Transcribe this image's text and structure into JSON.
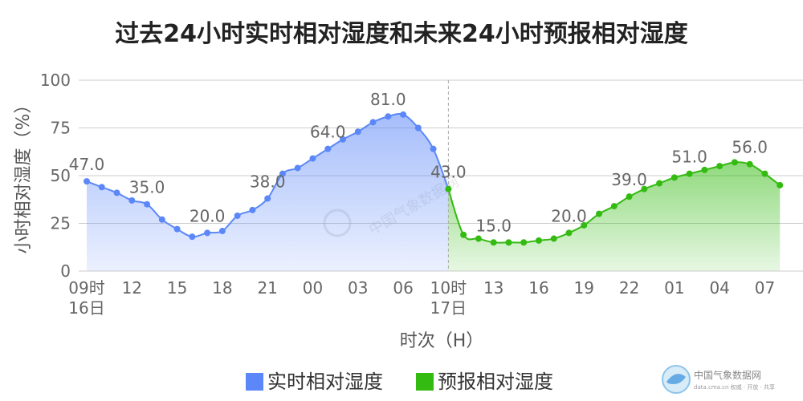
{
  "title": "过去24小时实时相对湿度和未来24小时预报相对湿度",
  "chart_data": {
    "type": "area",
    "title": "过去24小时实时相对湿度和未来24小时预报相对湿度",
    "xlabel": "时次（H）",
    "ylabel": "小时相对湿度（%）",
    "ylim": [
      0,
      100
    ],
    "yticks": [
      "0",
      "25",
      "50",
      "75",
      "100"
    ],
    "hours": 48,
    "xticks": [
      {
        "i": 0,
        "lines": [
          "09时",
          "16日"
        ]
      },
      {
        "i": 3,
        "lines": [
          "12"
        ]
      },
      {
        "i": 6,
        "lines": [
          "15"
        ]
      },
      {
        "i": 9,
        "lines": [
          "18"
        ]
      },
      {
        "i": 12,
        "lines": [
          "21"
        ]
      },
      {
        "i": 15,
        "lines": [
          "00"
        ]
      },
      {
        "i": 18,
        "lines": [
          "03"
        ]
      },
      {
        "i": 21,
        "lines": [
          "06"
        ]
      },
      {
        "i": 24,
        "lines": [
          "10时",
          "17日"
        ]
      },
      {
        "i": 27,
        "lines": [
          "13"
        ]
      },
      {
        "i": 30,
        "lines": [
          "16"
        ]
      },
      {
        "i": 33,
        "lines": [
          "19"
        ]
      },
      {
        "i": 36,
        "lines": [
          "22"
        ]
      },
      {
        "i": 39,
        "lines": [
          "01"
        ]
      },
      {
        "i": 42,
        "lines": [
          "04"
        ]
      },
      {
        "i": 45,
        "lines": [
          "07"
        ]
      }
    ],
    "divider_index": 24,
    "series": [
      {
        "name": "实时相对湿度",
        "color": "#5b87f8",
        "start_index": 0,
        "values": [
          47,
          44,
          41,
          37,
          35,
          27,
          22,
          18,
          20,
          21,
          29,
          32,
          38,
          51,
          54,
          59,
          64,
          69,
          73,
          78,
          81,
          82,
          75,
          64,
          43
        ],
        "labels": [
          {
            "idx": 0,
            "text": "47.0"
          },
          {
            "idx": 4,
            "text": "35.0"
          },
          {
            "idx": 8,
            "text": "20.0"
          },
          {
            "idx": 12,
            "text": "38.0"
          },
          {
            "idx": 16,
            "text": "64.0"
          },
          {
            "idx": 20,
            "text": "81.0"
          },
          {
            "idx": 24,
            "text": "43.0"
          }
        ]
      },
      {
        "name": "预报相对湿度",
        "color": "#33bb11",
        "start_index": 24,
        "values": [
          43,
          19,
          17,
          15,
          15,
          15,
          16,
          17,
          20,
          24,
          30,
          34,
          39,
          43,
          46,
          49,
          51,
          53,
          55,
          57,
          56,
          51,
          45
        ],
        "labels": [
          {
            "idx": 27,
            "text": "15.0"
          },
          {
            "idx": 32,
            "text": "20.0"
          },
          {
            "idx": 36,
            "text": "39.0"
          },
          {
            "idx": 40,
            "text": "51.0"
          },
          {
            "idx": 44,
            "text": "56.0"
          }
        ]
      }
    ],
    "legend": {
      "position": "bottom-center",
      "items": [
        "实时相对湿度",
        "预报相对湿度"
      ]
    },
    "grid": true
  },
  "watermark": {
    "center_text": "中国气象数据网",
    "logo_name": "中国气象数据网",
    "logo_sub": "data.cma.cn 权威 · 开放 · 共享"
  }
}
